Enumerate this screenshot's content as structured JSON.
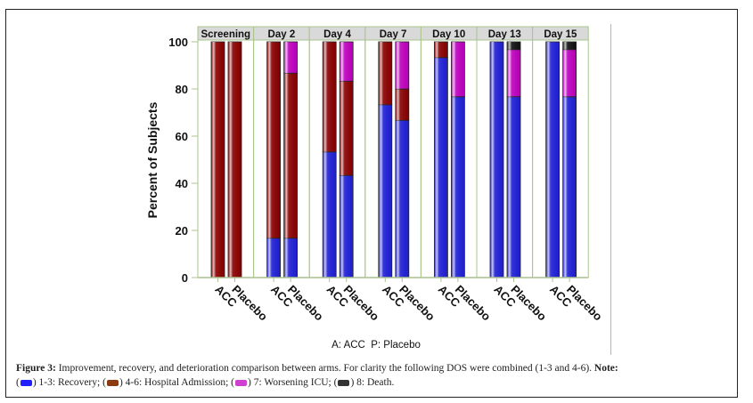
{
  "chart_data": {
    "type": "bar",
    "stacked": true,
    "panels": [
      "Screening",
      "Day 2",
      "Day 4",
      "Day 7",
      "Day 10",
      "Day 13",
      "Day 15"
    ],
    "categories": [
      "ACC",
      "Placebo"
    ],
    "ylabel": "Percent of Subjects",
    "xlabel": "A: ACC  P: Placebo",
    "ylim": [
      0,
      100
    ],
    "yticks": [
      0,
      20,
      40,
      60,
      80,
      100
    ],
    "series": [
      {
        "name": "1-3: Recovery",
        "color": "#2020d8",
        "values": [
          [
            0,
            0
          ],
          [
            16.7,
            16.7
          ],
          [
            53.3,
            43.3
          ],
          [
            73.3,
            66.7
          ],
          [
            93.3,
            76.7
          ],
          [
            100,
            76.7
          ],
          [
            100,
            76.7
          ]
        ]
      },
      {
        "name": "4-6: Hospital Admission",
        "color": "#8b0000",
        "values": [
          [
            100,
            100
          ],
          [
            83.3,
            70.0
          ],
          [
            46.7,
            40.0
          ],
          [
            26.7,
            13.3
          ],
          [
            6.7,
            0
          ],
          [
            0,
            0
          ],
          [
            0,
            0
          ]
        ]
      },
      {
        "name": "7: Worsening ICU",
        "color": "#c000c0",
        "values": [
          [
            0,
            0
          ],
          [
            0,
            13.3
          ],
          [
            0,
            16.7
          ],
          [
            0,
            20.0
          ],
          [
            0,
            23.3
          ],
          [
            0,
            20.0
          ],
          [
            0,
            20.0
          ]
        ]
      },
      {
        "name": "8: Death",
        "color": "#111111",
        "values": [
          [
            0,
            0
          ],
          [
            0,
            0
          ],
          [
            0,
            0
          ],
          [
            0,
            0
          ],
          [
            0,
            0
          ],
          [
            0,
            3.3
          ],
          [
            0,
            3.3
          ]
        ]
      }
    ]
  },
  "caption": {
    "label": "Figure 3:",
    "text": " Improvement, recovery, and deterioration comparison between arms. For clarity the following DOS were combined (1-3 and 4-6). ",
    "note_label": "Note:",
    "legend": [
      {
        "text": "1-3: Recovery;",
        "color": "#2020ff"
      },
      {
        "text": "4-6: Hospital Admission;",
        "color": "#8b3a10"
      },
      {
        "text": "7: Worsening ICU;",
        "color": "#d040d0"
      },
      {
        "text": "8: Death.",
        "color": "#333333"
      }
    ]
  }
}
